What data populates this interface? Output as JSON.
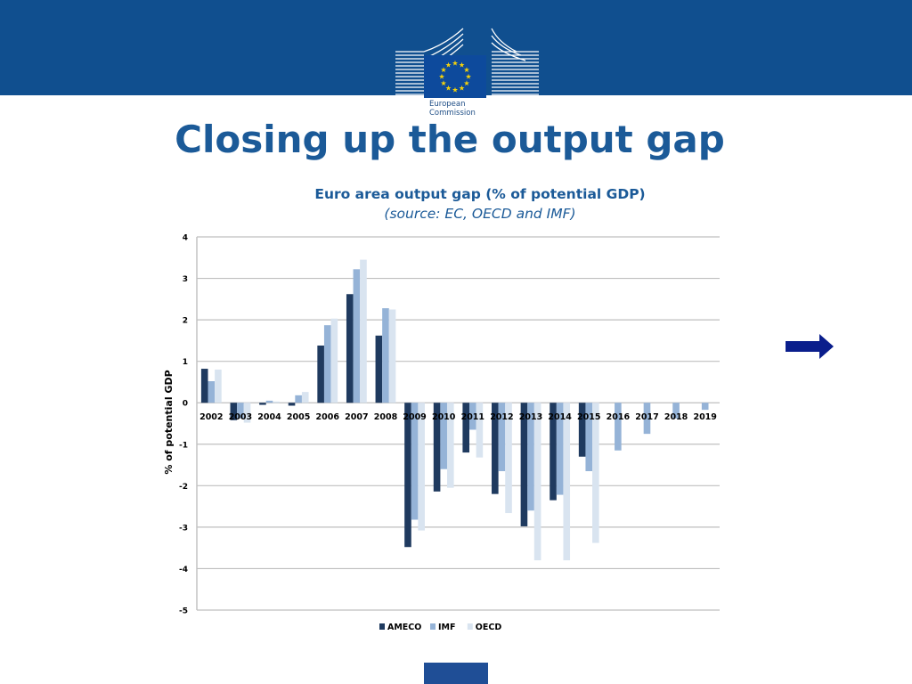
{
  "slide": {
    "title": "Closing up the output gap",
    "logo_text_line1": "European",
    "logo_text_line2": "Commission",
    "colors": {
      "banner": "#104f8f",
      "title": "#1b5a98",
      "arrow": "#0a1e8c"
    }
  },
  "chart_data": {
    "type": "bar",
    "title": "Euro area output gap (% of potential GDP)",
    "subtitle": "(source: EC, OECD and IMF)",
    "xlabel": "",
    "ylabel": "% of potential GDP",
    "ylim": [
      -5,
      4
    ],
    "yticks": [
      4,
      3,
      2,
      1,
      0,
      -1,
      -2,
      -3,
      -4,
      -5
    ],
    "grid": true,
    "legend_position": "bottom",
    "categories": [
      "2002",
      "2003",
      "2004",
      "2005",
      "2006",
      "2007",
      "2008",
      "2009",
      "2010",
      "2011",
      "2012",
      "2013",
      "2014",
      "2015",
      "2016",
      "2017",
      "2018",
      "2019"
    ],
    "series": [
      {
        "name": "AMECO",
        "color": "#1f3a5f",
        "values": [
          0.82,
          -0.42,
          -0.05,
          -0.07,
          1.38,
          2.62,
          1.62,
          -3.48,
          -2.14,
          -1.2,
          -2.2,
          -2.98,
          -2.35,
          -1.3,
          null,
          null,
          null,
          null
        ]
      },
      {
        "name": "IMF",
        "color": "#95b3d7",
        "values": [
          0.52,
          -0.38,
          0.05,
          0.18,
          1.87,
          3.22,
          2.28,
          -2.82,
          -1.6,
          -0.65,
          -1.65,
          -2.6,
          -2.22,
          -1.65,
          -1.15,
          -0.75,
          -0.38,
          -0.17
        ]
      },
      {
        "name": "OECD",
        "color": "#d9e4f0",
        "values": [
          0.8,
          -0.48,
          0.03,
          0.26,
          2.03,
          3.45,
          2.25,
          -3.08,
          -2.05,
          -1.32,
          -2.66,
          -3.8,
          -3.8,
          -3.38,
          null,
          null,
          null,
          null
        ]
      }
    ]
  }
}
